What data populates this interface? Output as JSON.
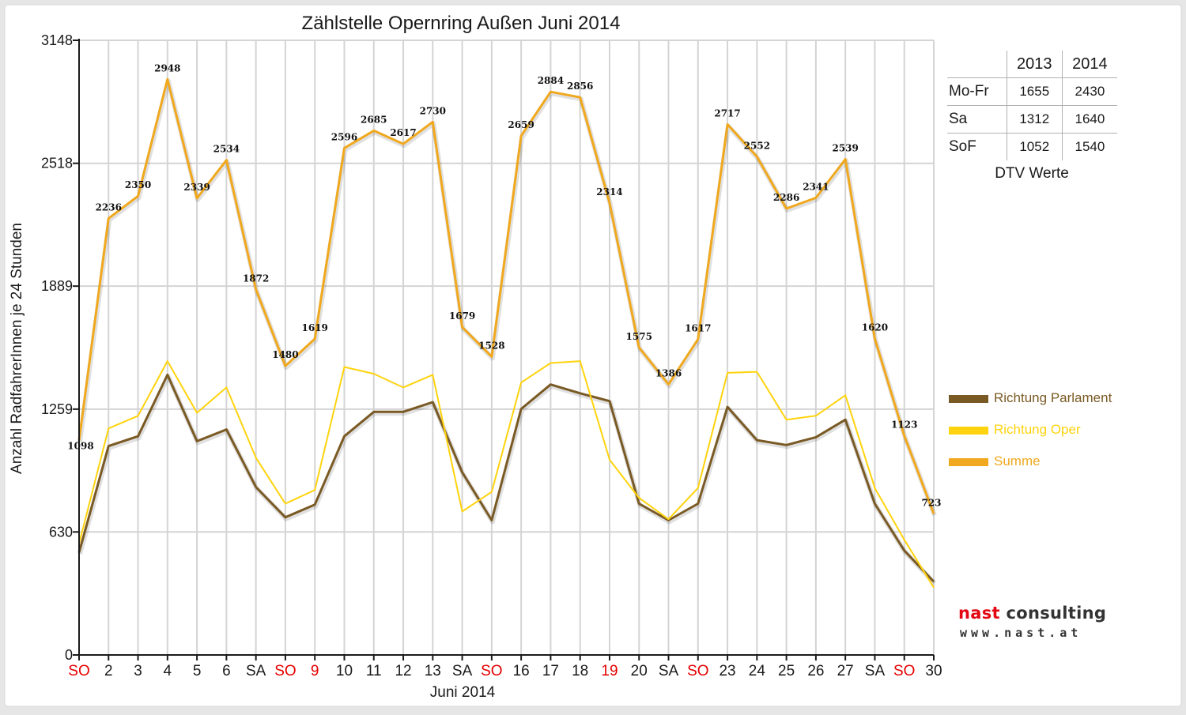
{
  "chart_data": {
    "type": "line",
    "title": "Zählstelle Opernring Außen Juni 2014",
    "xlabel": "Juni 2014",
    "ylabel": "Anzahl RadfahrerInnen je 24 Stunden",
    "ylim": [
      0,
      3148
    ],
    "yticks": [
      "0",
      "630",
      "1259",
      "1889",
      "2518",
      "3148"
    ],
    "grid": true,
    "legend_position": "right",
    "categories": [
      "SO",
      "2",
      "3",
      "4",
      "5",
      "6",
      "SA",
      "SO",
      "9",
      "10",
      "11",
      "12",
      "13",
      "SA",
      "SO",
      "16",
      "17",
      "18",
      "19",
      "20",
      "SA",
      "SO",
      "23",
      "24",
      "25",
      "26",
      "27",
      "SA",
      "SO",
      "30"
    ],
    "red_categories": [
      0,
      7,
      8,
      14,
      18,
      21,
      28
    ],
    "series": [
      {
        "name": "Richtung Parlament",
        "color": "#7a5a24",
        "values": [
          525,
          1070,
          1120,
          1435,
          1095,
          1155,
          860,
          705,
          770,
          1120,
          1245,
          1245,
          1295,
          935,
          690,
          1260,
          1385,
          1340,
          1300,
          775,
          690,
          775,
          1270,
          1100,
          1075,
          1115,
          1205,
          775,
          535,
          375
        ]
      },
      {
        "name": "Richtung Oper",
        "color": "#ffd30e",
        "values": [
          570,
          1160,
          1225,
          1505,
          1240,
          1370,
          1010,
          775,
          845,
          1475,
          1440,
          1370,
          1435,
          735,
          835,
          1395,
          1495,
          1505,
          1000,
          805,
          695,
          855,
          1445,
          1450,
          1205,
          1225,
          1330,
          855,
          590,
          345
        ]
      },
      {
        "name": "Summe",
        "color": "#f0a81e",
        "values": [
          1098,
          2236,
          2350,
          2948,
          2339,
          2534,
          1872,
          1480,
          1619,
          2596,
          2685,
          2617,
          2730,
          1679,
          1528,
          2659,
          2884,
          2856,
          2314,
          1575,
          1386,
          1617,
          2717,
          2552,
          2286,
          2341,
          2539,
          1620,
          1123,
          723
        ]
      }
    ],
    "data_labels": [
      "1098",
      "2236",
      "2350",
      "2948",
      "2339",
      "2534",
      "1872",
      "1480",
      "1619",
      "2596",
      "2685",
      "2617",
      "2730",
      "1679",
      "1528",
      "2659",
      "2884",
      "2856",
      "2314",
      "1575",
      "1386",
      "1617",
      "2717",
      "2552",
      "2286",
      "2341",
      "2539",
      "1620",
      "1123",
      "723"
    ]
  },
  "dtv_table": {
    "headers": [
      "",
      "2013",
      "2014"
    ],
    "rows": [
      [
        "Mo-Fr",
        "1655",
        "2430"
      ],
      [
        "Sa",
        "1312",
        "1640"
      ],
      [
        "SoF",
        "1052",
        "1540"
      ]
    ],
    "caption": "DTV Werte"
  },
  "legend": [
    {
      "label": "Richtung Parlament",
      "color": "#7a5a24"
    },
    {
      "label": "Richtung Oper",
      "color": "#ffd30e"
    },
    {
      "label": "Summe",
      "color": "#f0a81e"
    }
  ],
  "logo": {
    "main": "nast consulting",
    "sub": "www.nast.at"
  },
  "colors": {
    "red_label": "#e60000",
    "axis_text": "#1a1a1a",
    "grid": "#d4d4d4"
  }
}
